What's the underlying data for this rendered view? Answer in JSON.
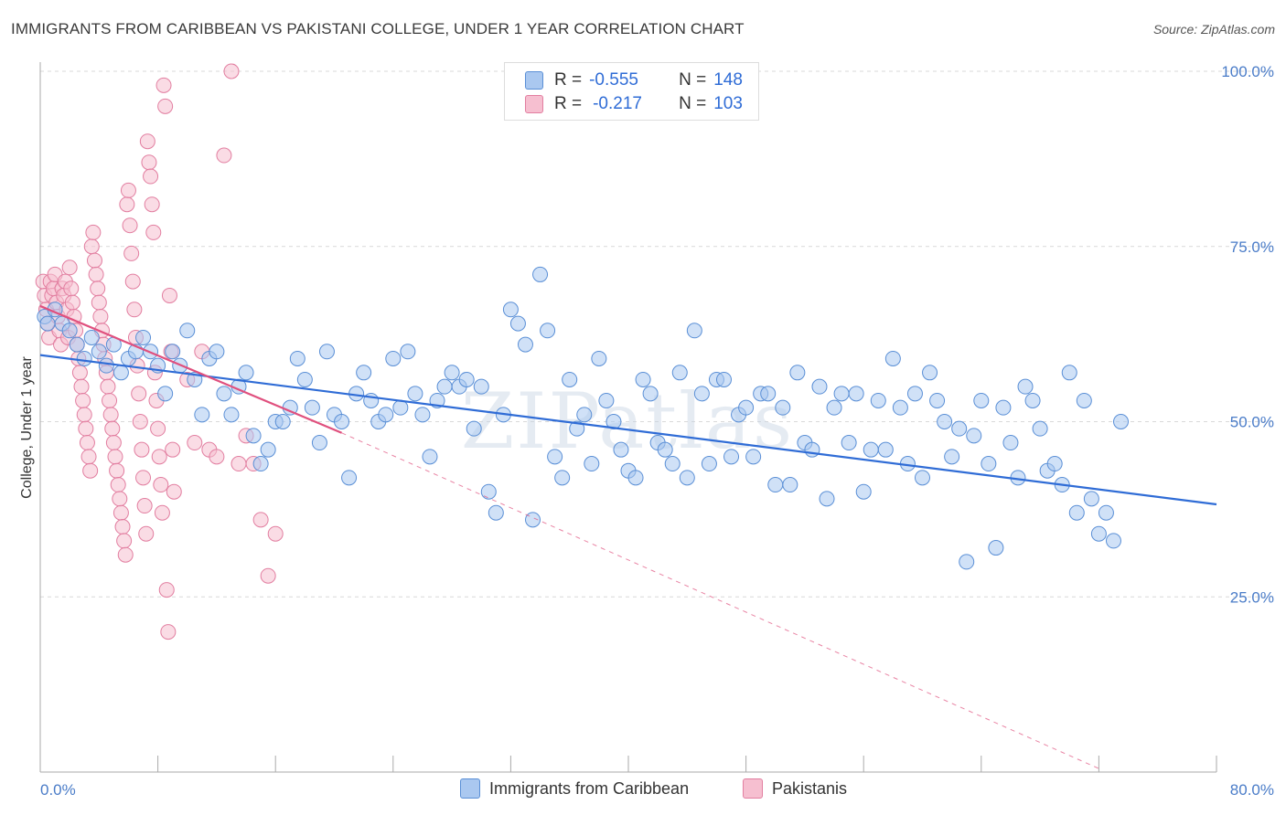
{
  "title": "IMMIGRANTS FROM CARIBBEAN VS PAKISTANI COLLEGE, UNDER 1 YEAR CORRELATION CHART",
  "source": "Source: ZipAtlas.com",
  "watermark": "ZIPatlas",
  "legend_top": {
    "r_label": "R =",
    "n_label": "N =",
    "rows": [
      {
        "r": "-0.555",
        "n": "148"
      },
      {
        "r": "-0.217",
        "n": "103"
      }
    ]
  },
  "colors": {
    "blue_fill": "#aac8f0",
    "blue_stroke": "#5a8fd6",
    "blue_line": "#2f6cd6",
    "pink_fill": "#f6bfd0",
    "pink_stroke": "#e27ea0",
    "pink_line": "#e0507e",
    "tick_label": "#4a7cc8"
  },
  "chart_data": {
    "type": "scatter",
    "title": "IMMIGRANTS FROM CARIBBEAN VS PAKISTANI COLLEGE, UNDER 1 YEAR CORRELATION CHART",
    "xlabel": "",
    "ylabel": "College, Under 1 year",
    "xlim": [
      0,
      80
    ],
    "ylim": [
      0,
      100
    ],
    "x_tick_labels": [
      "0.0%",
      "80.0%"
    ],
    "y_ticks": [
      25,
      50,
      75,
      100
    ],
    "y_tick_labels": [
      "25.0%",
      "50.0%",
      "75.0%",
      "100.0%"
    ],
    "grid": true,
    "legend": "bottom-center",
    "series": [
      {
        "name": "Immigrants from Caribbean",
        "color": "#5a8fd6",
        "R": -0.555,
        "N": 148,
        "trend": {
          "x": [
            0,
            80
          ],
          "y": [
            59.5,
            38.2
          ],
          "style": "solid"
        },
        "points": [
          [
            0.3,
            65
          ],
          [
            0.5,
            64
          ],
          [
            1,
            66
          ],
          [
            1.5,
            64
          ],
          [
            2,
            63
          ],
          [
            2.5,
            61
          ],
          [
            3,
            59
          ],
          [
            3.5,
            62
          ],
          [
            4,
            60
          ],
          [
            4.5,
            58
          ],
          [
            5,
            61
          ],
          [
            5.5,
            57
          ],
          [
            6,
            59
          ],
          [
            6.5,
            60
          ],
          [
            7,
            62
          ],
          [
            7.5,
            60
          ],
          [
            8,
            58
          ],
          [
            8.5,
            54
          ],
          [
            9,
            60
          ],
          [
            9.5,
            58
          ],
          [
            10,
            63
          ],
          [
            10.5,
            56
          ],
          [
            11,
            51
          ],
          [
            11.5,
            59
          ],
          [
            12,
            60
          ],
          [
            12.5,
            54
          ],
          [
            13,
            51
          ],
          [
            13.5,
            55
          ],
          [
            14,
            57
          ],
          [
            14.5,
            48
          ],
          [
            15,
            44
          ],
          [
            15.5,
            46
          ],
          [
            16,
            50
          ],
          [
            16.5,
            50
          ],
          [
            17,
            52
          ],
          [
            17.5,
            59
          ],
          [
            18,
            56
          ],
          [
            18.5,
            52
          ],
          [
            19,
            47
          ],
          [
            19.5,
            60
          ],
          [
            20,
            51
          ],
          [
            20.5,
            50
          ],
          [
            21,
            42
          ],
          [
            21.5,
            54
          ],
          [
            22,
            57
          ],
          [
            22.5,
            53
          ],
          [
            23,
            50
          ],
          [
            23.5,
            51
          ],
          [
            24,
            59
          ],
          [
            24.5,
            52
          ],
          [
            25,
            60
          ],
          [
            25.5,
            54
          ],
          [
            26,
            51
          ],
          [
            26.5,
            45
          ],
          [
            27,
            53
          ],
          [
            27.5,
            55
          ],
          [
            28,
            57
          ],
          [
            28.5,
            55
          ],
          [
            29,
            56
          ],
          [
            29.5,
            49
          ],
          [
            30,
            55
          ],
          [
            30.5,
            40
          ],
          [
            31,
            37
          ],
          [
            31.5,
            51
          ],
          [
            32,
            66
          ],
          [
            32.5,
            64
          ],
          [
            33,
            61
          ],
          [
            33.5,
            36
          ],
          [
            34,
            71
          ],
          [
            34.5,
            63
          ],
          [
            35,
            45
          ],
          [
            35.5,
            42
          ],
          [
            36,
            56
          ],
          [
            36.5,
            49
          ],
          [
            37,
            51
          ],
          [
            37.5,
            44
          ],
          [
            38,
            59
          ],
          [
            38.5,
            53
          ],
          [
            39,
            50
          ],
          [
            39.5,
            46
          ],
          [
            40,
            43
          ],
          [
            40.5,
            42
          ],
          [
            41,
            56
          ],
          [
            41.5,
            54
          ],
          [
            42,
            47
          ],
          [
            42.5,
            46
          ],
          [
            43,
            44
          ],
          [
            43.5,
            57
          ],
          [
            44,
            42
          ],
          [
            44.5,
            63
          ],
          [
            45,
            54
          ],
          [
            45.5,
            44
          ],
          [
            46,
            56
          ],
          [
            46.5,
            56
          ],
          [
            47,
            45
          ],
          [
            47.5,
            51
          ],
          [
            48,
            52
          ],
          [
            48.5,
            45
          ],
          [
            49,
            54
          ],
          [
            49.5,
            54
          ],
          [
            50,
            41
          ],
          [
            50.5,
            52
          ],
          [
            51,
            41
          ],
          [
            51.5,
            57
          ],
          [
            52,
            47
          ],
          [
            52.5,
            46
          ],
          [
            53,
            55
          ],
          [
            53.5,
            39
          ],
          [
            54,
            52
          ],
          [
            54.5,
            54
          ],
          [
            55,
            47
          ],
          [
            55.5,
            54
          ],
          [
            56,
            40
          ],
          [
            56.5,
            46
          ],
          [
            57,
            53
          ],
          [
            57.5,
            46
          ],
          [
            58,
            59
          ],
          [
            58.5,
            52
          ],
          [
            59,
            44
          ],
          [
            59.5,
            54
          ],
          [
            60,
            42
          ],
          [
            60.5,
            57
          ],
          [
            61,
            53
          ],
          [
            61.5,
            50
          ],
          [
            62,
            45
          ],
          [
            62.5,
            49
          ],
          [
            63,
            30
          ],
          [
            63.5,
            48
          ],
          [
            64,
            53
          ],
          [
            64.5,
            44
          ],
          [
            65,
            32
          ],
          [
            65.5,
            52
          ],
          [
            66,
            47
          ],
          [
            66.5,
            42
          ],
          [
            67,
            55
          ],
          [
            67.5,
            53
          ],
          [
            68,
            49
          ],
          [
            68.5,
            43
          ],
          [
            69,
            44
          ],
          [
            69.5,
            41
          ],
          [
            70,
            57
          ],
          [
            70.5,
            37
          ],
          [
            71,
            53
          ],
          [
            71.5,
            39
          ],
          [
            72,
            34
          ],
          [
            72.5,
            37
          ],
          [
            73,
            33
          ],
          [
            73.5,
            50
          ]
        ]
      },
      {
        "name": "Pakistanis",
        "color": "#e27ea0",
        "R": -0.217,
        "N": 103,
        "trend": {
          "x": [
            0,
            20.5
          ],
          "y": [
            66.5,
            48.4
          ],
          "style": "solid"
        },
        "trend_extended": {
          "x": [
            20.5,
            72
          ],
          "y": [
            48.4,
            0.5
          ],
          "style": "dashed"
        },
        "points": [
          [
            0.2,
            70
          ],
          [
            0.3,
            68
          ],
          [
            0.4,
            66
          ],
          [
            0.5,
            64
          ],
          [
            0.6,
            62
          ],
          [
            0.7,
            70
          ],
          [
            0.8,
            68
          ],
          [
            0.9,
            69
          ],
          [
            1,
            71
          ],
          [
            1.1,
            67
          ],
          [
            1.2,
            65
          ],
          [
            1.3,
            63
          ],
          [
            1.4,
            61
          ],
          [
            1.5,
            69
          ],
          [
            1.6,
            68
          ],
          [
            1.7,
            70
          ],
          [
            1.8,
            66
          ],
          [
            1.9,
            62
          ],
          [
            2,
            72
          ],
          [
            2.1,
            69
          ],
          [
            2.2,
            67
          ],
          [
            2.3,
            65
          ],
          [
            2.4,
            63
          ],
          [
            2.5,
            61
          ],
          [
            2.6,
            59
          ],
          [
            2.7,
            57
          ],
          [
            2.8,
            55
          ],
          [
            2.9,
            53
          ],
          [
            3,
            51
          ],
          [
            3.1,
            49
          ],
          [
            3.2,
            47
          ],
          [
            3.3,
            45
          ],
          [
            3.4,
            43
          ],
          [
            3.5,
            75
          ],
          [
            3.6,
            77
          ],
          [
            3.7,
            73
          ],
          [
            3.8,
            71
          ],
          [
            3.9,
            69
          ],
          [
            4,
            67
          ],
          [
            4.1,
            65
          ],
          [
            4.2,
            63
          ],
          [
            4.3,
            61
          ],
          [
            4.4,
            59
          ],
          [
            4.5,
            57
          ],
          [
            4.6,
            55
          ],
          [
            4.7,
            53
          ],
          [
            4.8,
            51
          ],
          [
            4.9,
            49
          ],
          [
            5,
            47
          ],
          [
            5.1,
            45
          ],
          [
            5.2,
            43
          ],
          [
            5.3,
            41
          ],
          [
            5.4,
            39
          ],
          [
            5.5,
            37
          ],
          [
            5.6,
            35
          ],
          [
            5.7,
            33
          ],
          [
            5.8,
            31
          ],
          [
            5.9,
            81
          ],
          [
            6,
            83
          ],
          [
            6.1,
            78
          ],
          [
            6.2,
            74
          ],
          [
            6.3,
            70
          ],
          [
            6.4,
            66
          ],
          [
            6.5,
            62
          ],
          [
            6.6,
            58
          ],
          [
            6.7,
            54
          ],
          [
            6.8,
            50
          ],
          [
            6.9,
            46
          ],
          [
            7,
            42
          ],
          [
            7.1,
            38
          ],
          [
            7.2,
            34
          ],
          [
            7.3,
            90
          ],
          [
            7.4,
            87
          ],
          [
            7.5,
            85
          ],
          [
            7.6,
            81
          ],
          [
            7.7,
            77
          ],
          [
            7.8,
            57
          ],
          [
            7.9,
            53
          ],
          [
            8,
            49
          ],
          [
            8.1,
            45
          ],
          [
            8.2,
            41
          ],
          [
            8.3,
            37
          ],
          [
            8.4,
            98
          ],
          [
            8.5,
            95
          ],
          [
            8.6,
            26
          ],
          [
            8.7,
            20
          ],
          [
            8.8,
            68
          ],
          [
            8.9,
            60
          ],
          [
            9,
            46
          ],
          [
            9.1,
            40
          ],
          [
            10,
            56
          ],
          [
            10.5,
            47
          ],
          [
            11,
            60
          ],
          [
            11.5,
            46
          ],
          [
            12,
            45
          ],
          [
            12.5,
            88
          ],
          [
            13,
            100
          ],
          [
            13.5,
            44
          ],
          [
            14,
            48
          ],
          [
            14.5,
            44
          ],
          [
            15,
            36
          ],
          [
            15.5,
            28
          ],
          [
            16,
            34
          ]
        ]
      }
    ]
  },
  "bottom_legend": [
    {
      "label": "Immigrants from Caribbean"
    },
    {
      "label": "Pakistanis"
    }
  ]
}
